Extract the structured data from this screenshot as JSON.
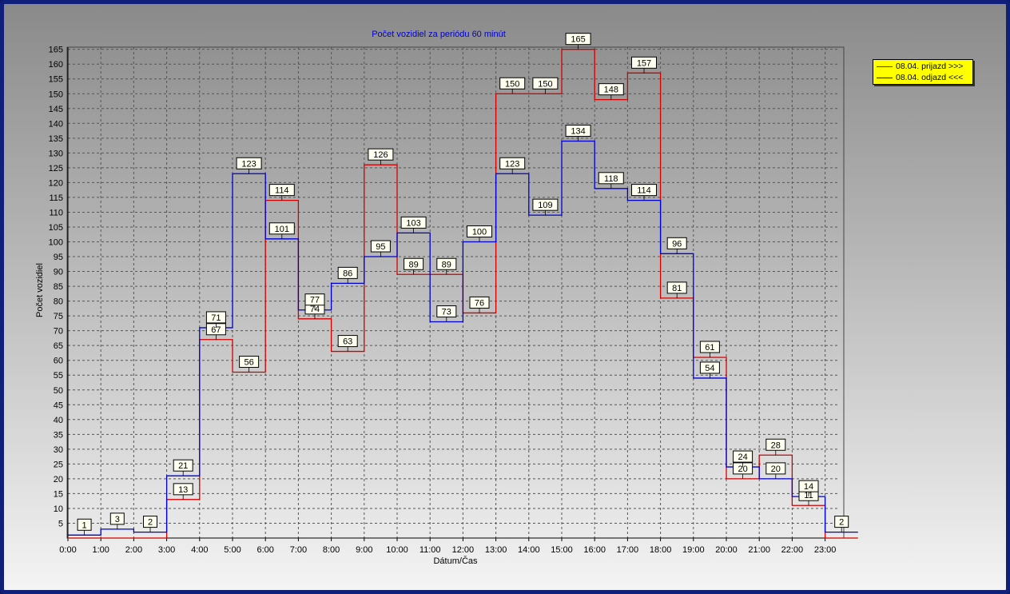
{
  "chart_data": {
    "type": "line",
    "step": true,
    "title": "Počet vozidiel za periódu 60 minút",
    "xlabel": "Dátum/Čas",
    "ylabel": "Počet vozidiel",
    "categories": [
      "0:00",
      "1:00",
      "2:00",
      "3:00",
      "4:00",
      "5:00",
      "6:00",
      "7:00",
      "8:00",
      "9:00",
      "10:00",
      "11:00",
      "12:00",
      "13:00",
      "14:00",
      "15:00",
      "16:00",
      "17:00",
      "18:00",
      "19:00",
      "20:00",
      "21:00",
      "22:00",
      "23:00"
    ],
    "ylim": [
      0,
      165
    ],
    "yticks": [
      5,
      10,
      15,
      20,
      25,
      30,
      35,
      40,
      45,
      50,
      55,
      60,
      65,
      70,
      75,
      80,
      85,
      90,
      95,
      100,
      105,
      110,
      115,
      120,
      125,
      130,
      135,
      140,
      145,
      150,
      155,
      160,
      165
    ],
    "grid": true,
    "legend_position": "right",
    "series": [
      {
        "name": "08.04.  prijazd >>>",
        "color": "#d40000",
        "values": [
          0,
          0,
          0,
          13,
          67,
          56,
          114,
          74,
          63,
          126,
          89,
          89,
          76,
          150,
          150,
          165,
          148,
          157,
          81,
          61,
          20,
          28,
          11,
          0
        ]
      },
      {
        "name": "08.04.  odjazd <<<",
        "color": "#0000d4",
        "values": [
          1,
          3,
          2,
          21,
          71,
          123,
          101,
          77,
          86,
          95,
          103,
          73,
          100,
          123,
          109,
          134,
          118,
          114,
          96,
          54,
          24,
          20,
          14,
          2
        ]
      }
    ]
  }
}
